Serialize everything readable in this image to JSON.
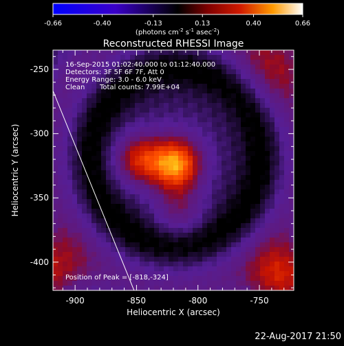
{
  "colorbar": {
    "ticks": [
      "-0.66",
      "-0.40",
      "-0.13",
      "0.13",
      "0.40",
      "0.66"
    ],
    "unit_label": "(photons cm",
    "unit_sup1": "-2",
    "unit_mid1": " s",
    "unit_sup2": "-1",
    "unit_mid2": " asec",
    "unit_sup3": "-2",
    "unit_end": ")",
    "range": [
      -0.66,
      0.66
    ]
  },
  "chart_data": {
    "type": "heatmap",
    "title": "Reconstructed RHESSI Image",
    "xlabel": "Heliocentric X (arcsec)",
    "ylabel": "Heliocentric Y (arcsec)",
    "xlim": [
      -918,
      -722
    ],
    "ylim": [
      -422,
      -235
    ],
    "x_ticks": [
      "-900",
      "-850",
      "-800",
      "-750"
    ],
    "y_ticks": [
      "-250",
      "-300",
      "-350",
      "-400"
    ],
    "x_tick_values": [
      -900,
      -850,
      -800,
      -750
    ],
    "y_tick_values": [
      -250,
      -300,
      -350,
      -400
    ],
    "peak": {
      "x": -818,
      "y": -324
    },
    "sources": [
      {
        "x": -818,
        "y": -324,
        "amplitude": 0.66
      },
      {
        "x": -848,
        "y": -320,
        "amplitude": 0.45
      },
      {
        "x": -815,
        "y": -360,
        "amplitude": 0.25
      }
    ],
    "limb_line": [
      [
        -920,
        -262
      ],
      [
        -852,
        -422
      ]
    ],
    "annotations": {
      "time_range": "16-Sep-2015 01:02:40.000 to 01:12:40.000",
      "detectors": "Detectors: 3F 5F 6F 7F, Att 0",
      "energy": "Energy Range: 3.0 - 6.0 keV",
      "method": "Clean",
      "counts": "Total counts: 7.99E+04",
      "peak_label": "Position of Peak = [-818,-324]"
    }
  },
  "footer": {
    "timestamp": "22-Aug-2017 21:50"
  }
}
